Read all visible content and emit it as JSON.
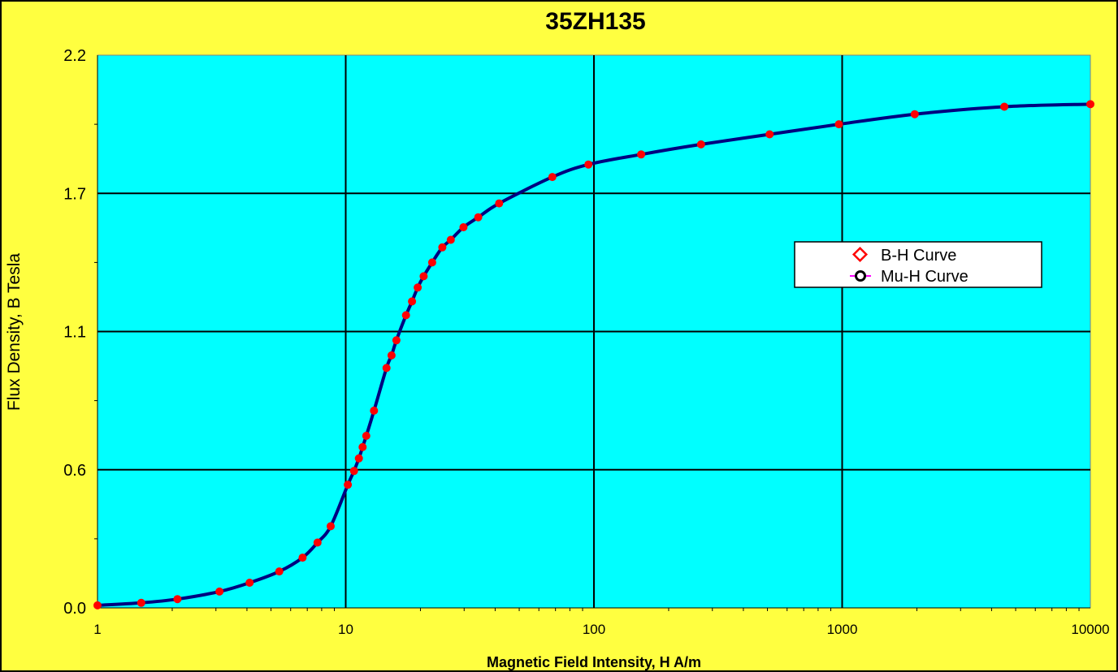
{
  "chart_data": {
    "type": "line",
    "title": "35ZH135",
    "xlabel": "Magnetic Field Intensity, H A/m",
    "ylabel": "Flux Density, B Tesla",
    "x_scale": "log",
    "xlim": [
      1,
      10000
    ],
    "ylim": [
      0,
      2.2
    ],
    "x_ticks": [
      "1",
      "10",
      "100",
      "1000",
      "10000"
    ],
    "y_ticks": [
      "0.0",
      "0.6",
      "1.1",
      "1.7",
      "2.2"
    ],
    "grid": true,
    "legend_position": "right",
    "colors": {
      "background": "#FFFF40",
      "plot_area": "#00FFFF",
      "curve": "#000080",
      "markers": "#FF0000",
      "grid": "#000000"
    },
    "series": [
      {
        "name": "B-H Curve",
        "x": [
          1.0,
          1.5,
          2.1,
          3.1,
          4.1,
          5.4,
          6.7,
          7.7,
          8.7,
          10.2,
          10.8,
          11.3,
          11.7,
          12.1,
          13.0,
          14.6,
          15.3,
          16.0,
          17.5,
          18.5,
          19.5,
          20.6,
          22.3,
          24.5,
          26.5,
          29.8,
          34.2,
          41.5,
          68.0,
          95.0,
          155.0,
          270.0,
          510.0,
          970.0,
          1960.0,
          4500.0,
          10000.0
        ],
        "y": [
          0.01,
          0.02,
          0.035,
          0.065,
          0.1,
          0.145,
          0.2,
          0.26,
          0.325,
          0.49,
          0.545,
          0.595,
          0.64,
          0.685,
          0.785,
          0.955,
          1.005,
          1.065,
          1.165,
          1.22,
          1.275,
          1.32,
          1.375,
          1.435,
          1.465,
          1.515,
          1.555,
          1.61,
          1.715,
          1.765,
          1.805,
          1.845,
          1.885,
          1.925,
          1.965,
          1.995,
          2.005
        ]
      },
      {
        "name": "Mu-H Curve",
        "x": [],
        "y": []
      }
    ]
  }
}
